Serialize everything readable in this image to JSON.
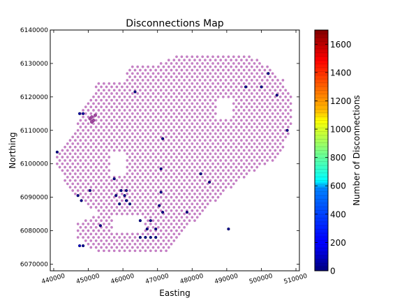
{
  "chart_data": {
    "type": "scatter",
    "title": "Disconnections Map",
    "xlabel": "Easting",
    "ylabel": "Northing",
    "xlim": [
      439000,
      511000
    ],
    "ylim": [
      6068000,
      6140000
    ],
    "xticks": [
      440000,
      450000,
      460000,
      470000,
      480000,
      490000,
      500000,
      510000
    ],
    "yticks": [
      6070000,
      6080000,
      6090000,
      6100000,
      6110000,
      6120000,
      6130000,
      6140000
    ],
    "xtick_labels": [
      "440000",
      "450000",
      "460000",
      "470000",
      "480000",
      "490000",
      "500000",
      "510000"
    ],
    "ytick_labels": [
      "6070000",
      "6080000",
      "6090000",
      "6100000",
      "6110000",
      "6120000",
      "6130000",
      "6140000"
    ],
    "grid": false,
    "colorbar": {
      "label": "Number of Disconnections",
      "min": 0,
      "max": 1700,
      "ticks": [
        0,
        200,
        400,
        600,
        800,
        1000,
        1200,
        1400,
        1600
      ],
      "tick_labels": [
        "0",
        "200",
        "400",
        "600",
        "800",
        "1000",
        "1200",
        "1400",
        "1600"
      ],
      "colormap": "jet"
    },
    "base_color": "#c77fc7",
    "base_region": [
      [
        440000,
        6102000
      ],
      [
        446000,
        6110000
      ],
      [
        447500,
        6115000
      ],
      [
        451500,
        6121000
      ],
      [
        452500,
        6125000
      ],
      [
        460000,
        6125000
      ],
      [
        462500,
        6129000
      ],
      [
        470000,
        6130000
      ],
      [
        478000,
        6133000
      ],
      [
        487000,
        6133000
      ],
      [
        495000,
        6133000
      ],
      [
        499500,
        6131000
      ],
      [
        503000,
        6128500
      ],
      [
        506500,
        6125000
      ],
      [
        509000,
        6120000
      ],
      [
        508500,
        6110000
      ],
      [
        505000,
        6102000
      ],
      [
        497000,
        6097000
      ],
      [
        490000,
        6092000
      ],
      [
        484000,
        6086000
      ],
      [
        479000,
        6081000
      ],
      [
        474000,
        6074000
      ],
      [
        452000,
        6074000
      ],
      [
        447000,
        6078000
      ],
      [
        447000,
        6082000
      ],
      [
        453000,
        6085000
      ],
      [
        449000,
        6088000
      ],
      [
        443500,
        6094000
      ]
    ],
    "excluded_regions": [
      [
        [
          456500,
          6103500
        ],
        [
          461000,
          6103500
        ],
        [
          461000,
          6096500
        ],
        [
          456500,
          6096500
        ]
      ],
      [
        [
          457500,
          6085000
        ],
        [
          466500,
          6085000
        ],
        [
          466500,
          6079500
        ],
        [
          457500,
          6079500
        ]
      ],
      [
        [
          487000,
          6120000
        ],
        [
          491500,
          6120000
        ],
        [
          491500,
          6114000
        ],
        [
          487000,
          6114000
        ]
      ]
    ],
    "highlight_points": [
      {
        "x": 450500,
        "y": 6113500,
        "value": 180
      },
      {
        "x": 451000,
        "y": 6114000,
        "value": 240
      },
      {
        "x": 451500,
        "y": 6113000,
        "value": 200
      },
      {
        "x": 452000,
        "y": 6114500,
        "value": 160
      },
      {
        "x": 451000,
        "y": 6112500,
        "value": 140
      }
    ],
    "points": [
      {
        "x": 447500,
        "y": 6115000,
        "value": 60
      },
      {
        "x": 448500,
        "y": 6115000,
        "value": 60
      },
      {
        "x": 463500,
        "y": 6121500,
        "value": 20
      },
      {
        "x": 495500,
        "y": 6123000,
        "value": 20
      },
      {
        "x": 500000,
        "y": 6123000,
        "value": 20
      },
      {
        "x": 502000,
        "y": 6127000,
        "value": 20
      },
      {
        "x": 504500,
        "y": 6120500,
        "value": 20
      },
      {
        "x": 507500,
        "y": 6110000,
        "value": 20
      },
      {
        "x": 471500,
        "y": 6107500,
        "value": 20
      },
      {
        "x": 441000,
        "y": 6103500,
        "value": 20
      },
      {
        "x": 471000,
        "y": 6098500,
        "value": 20
      },
      {
        "x": 482500,
        "y": 6097000,
        "value": 20
      },
      {
        "x": 485000,
        "y": 6094500,
        "value": 20
      },
      {
        "x": 457500,
        "y": 6095500,
        "value": 20
      },
      {
        "x": 450500,
        "y": 6092000,
        "value": 20
      },
      {
        "x": 459500,
        "y": 6092000,
        "value": 20
      },
      {
        "x": 461000,
        "y": 6092000,
        "value": 20
      },
      {
        "x": 471000,
        "y": 6091500,
        "value": 20
      },
      {
        "x": 447000,
        "y": 6090500,
        "value": 20
      },
      {
        "x": 458000,
        "y": 6090500,
        "value": 20
      },
      {
        "x": 460500,
        "y": 6090500,
        "value": 20
      },
      {
        "x": 448000,
        "y": 6089000,
        "value": 20
      },
      {
        "x": 461000,
        "y": 6089000,
        "value": 20
      },
      {
        "x": 459000,
        "y": 6088000,
        "value": 20
      },
      {
        "x": 462000,
        "y": 6088000,
        "value": 20
      },
      {
        "x": 470500,
        "y": 6087500,
        "value": 20
      },
      {
        "x": 471500,
        "y": 6085500,
        "value": 20
      },
      {
        "x": 478500,
        "y": 6085500,
        "value": 20
      },
      {
        "x": 465000,
        "y": 6083000,
        "value": 20
      },
      {
        "x": 468000,
        "y": 6083000,
        "value": 20
      },
      {
        "x": 453500,
        "y": 6081500,
        "value": 20
      },
      {
        "x": 467000,
        "y": 6080500,
        "value": 20
      },
      {
        "x": 469500,
        "y": 6080500,
        "value": 20
      },
      {
        "x": 490500,
        "y": 6080500,
        "value": 20
      },
      {
        "x": 465000,
        "y": 6078000,
        "value": 20
      },
      {
        "x": 466500,
        "y": 6078000,
        "value": 20
      },
      {
        "x": 468000,
        "y": 6078000,
        "value": 20
      },
      {
        "x": 469500,
        "y": 6078000,
        "value": 20
      },
      {
        "x": 447500,
        "y": 6075500,
        "value": 120
      },
      {
        "x": 448500,
        "y": 6075500,
        "value": 40
      }
    ]
  }
}
